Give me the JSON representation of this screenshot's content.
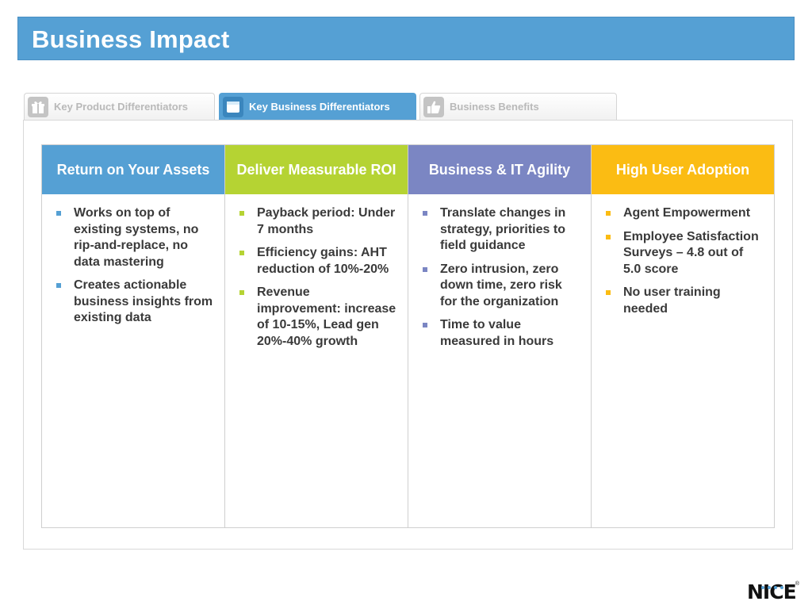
{
  "slide": {
    "title": "Business Impact"
  },
  "tabs": [
    {
      "label": "Key Product Differentiators",
      "icon": "gift-icon",
      "active": false
    },
    {
      "label": "Key Business Differentiators",
      "icon": "window-icon",
      "active": true
    },
    {
      "label": "Business Benefits",
      "icon": "thumbs-up-icon",
      "active": false
    }
  ],
  "colors": {
    "title_bar": "#55a0d4",
    "col1": "#55a0d4",
    "col2": "#b5d333",
    "col3": "#7b86c3",
    "col4": "#fbbc13"
  },
  "columns": [
    {
      "heading": "Return on Your Assets",
      "items": [
        "Works on top of existing systems, no rip-and-replace, no data mastering",
        "Creates actionable business insights from existing data"
      ]
    },
    {
      "heading": "Deliver Measurable ROI",
      "items": [
        "Payback period: Under 7 months",
        "Efficiency gains: AHT  reduction of 10%-20%",
        "Revenue improvement: increase of 10-15%, Lead gen 20%-40% growth"
      ]
    },
    {
      "heading": "Business & IT Agility",
      "items": [
        "Translate changes in strategy, priorities to field guidance",
        "Zero intrusion, zero down time, zero risk for the organization",
        "Time to value measured in hours"
      ]
    },
    {
      "heading": "High User Adoption",
      "items": [
        "Agent Empowerment",
        "Employee Satisfaction Surveys  –  4.8 out of 5.0 score",
        "No user training needed"
      ]
    }
  ],
  "logo": {
    "text": "NICE",
    "registered": "®"
  }
}
